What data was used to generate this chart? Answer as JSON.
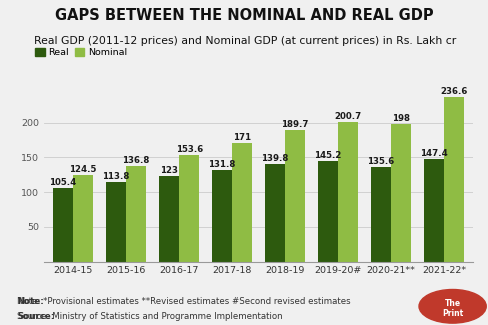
{
  "title": "GAPS BETWEEN THE NOMINAL AND REAL GDP",
  "subtitle": "Real GDP (2011-12 prices) and Nominal GDP (at current prices) in Rs. Lakh cr",
  "categories": [
    "2014-15",
    "2015-16",
    "2016-17",
    "2017-18",
    "2018-19",
    "2019-20#",
    "2020-21**",
    "2021-22*"
  ],
  "real_values": [
    105.4,
    113.8,
    123,
    131.8,
    139.8,
    145.2,
    135.6,
    147.4
  ],
  "nominal_values": [
    124.5,
    136.8,
    153.6,
    171,
    189.7,
    200.7,
    198,
    236.6
  ],
  "real_color": "#2d5a0e",
  "nominal_color": "#8fbc44",
  "subtitle_bg": "#e8d44d",
  "bg_color": "#f0f0f0",
  "note_text": "Note: *Provisional estimates **Revised estimates #Second revised estimates",
  "source_text": "Source: Ministry of Statistics and Programme Implementation",
  "ylim": [
    0,
    250
  ],
  "yticks": [
    50,
    100,
    150,
    200
  ],
  "bar_width": 0.38,
  "legend_real": "Real",
  "legend_nominal": "Nominal",
  "title_fontsize": 10.5,
  "subtitle_fontsize": 7.8,
  "note_fontsize": 6.2,
  "tick_fontsize": 6.8,
  "value_fontsize": 6.2,
  "grid_color": "#cccccc",
  "logo_bg": "#c0392b"
}
